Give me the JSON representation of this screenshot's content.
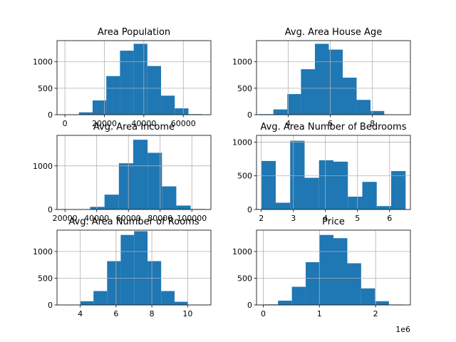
{
  "chart_data": [
    {
      "type": "bar",
      "title": "Area Population",
      "xlim": [
        -4000,
        74000
      ],
      "ylim": [
        0,
        1400
      ],
      "xticks": [
        0,
        20000,
        40000,
        60000
      ],
      "xtick_labels": [
        "0",
        "20000",
        "40000",
        "60000"
      ],
      "yticks": [
        0,
        500,
        1000
      ],
      "ytick_labels": [
        "0",
        "500",
        "1000"
      ],
      "bin_edges": [
        172.6,
        7111,
        14050,
        20988,
        27927,
        34866,
        41804,
        48743,
        55681,
        62620,
        69559
      ],
      "counts": [
        4,
        45,
        270,
        730,
        1210,
        1340,
        920,
        360,
        120,
        10
      ],
      "color": "#1f77b4",
      "grid": true
    },
    {
      "type": "bar",
      "title": "Avg. Area House Age",
      "xlim": [
        2.5,
        9.8
      ],
      "ylim": [
        0,
        1400
      ],
      "xticks": [
        4,
        6,
        8
      ],
      "xtick_labels": [
        "4",
        "6",
        "8"
      ],
      "yticks": [
        0,
        500,
        1000
      ],
      "ytick_labels": [
        "0",
        "500",
        "1000"
      ],
      "bin_edges": [
        2.64,
        3.3,
        3.96,
        4.61,
        5.27,
        5.93,
        6.59,
        7.25,
        7.91,
        8.56,
        9.22
      ],
      "counts": [
        10,
        100,
        390,
        860,
        1340,
        1230,
        700,
        280,
        70,
        5
      ],
      "color": "#1f77b4",
      "grid": true
    },
    {
      "type": "bar",
      "title": "Avg. Area Income",
      "xlim": [
        15000,
        112000
      ],
      "ylim": [
        0,
        1700
      ],
      "xticks": [
        20000,
        40000,
        60000,
        80000,
        100000
      ],
      "xtick_labels": [
        "20000",
        "40000",
        "60000",
        "80000",
        "100000"
      ],
      "yticks": [
        0,
        1000
      ],
      "ytick_labels": [
        "0",
        "1000"
      ],
      "bin_edges": [
        17797,
        26846,
        35896,
        44945,
        53994,
        63044,
        72093,
        81142,
        90192,
        99241,
        108290
      ],
      "counts": [
        2,
        5,
        60,
        340,
        1060,
        1600,
        1300,
        530,
        90,
        10
      ],
      "color": "#1f77b4",
      "grid": true
    },
    {
      "type": "bar",
      "title": "Avg. Area Number of Bedrooms",
      "xlim": [
        1.85,
        6.65
      ],
      "ylim": [
        0,
        1100
      ],
      "xticks": [
        2,
        3,
        4,
        5,
        6
      ],
      "xtick_labels": [
        "2",
        "3",
        "4",
        "5",
        "6"
      ],
      "yticks": [
        0,
        500,
        1000
      ],
      "ytick_labels": [
        "0",
        "500",
        "1000"
      ],
      "bin_edges": [
        2.0,
        2.45,
        2.9,
        3.35,
        3.8,
        4.25,
        4.7,
        5.15,
        5.6,
        6.05,
        6.5
      ],
      "counts": [
        720,
        100,
        1020,
        470,
        730,
        710,
        190,
        410,
        50,
        570
      ],
      "color": "#1f77b4",
      "grid": true
    },
    {
      "type": "bar",
      "title": "Avg. Area Number of Rooms",
      "xlim": [
        2.7,
        11.3
      ],
      "ylim": [
        0,
        1400
      ],
      "xticks": [
        4,
        6,
        8,
        10
      ],
      "xtick_labels": [
        "4",
        "6",
        "8",
        "10"
      ],
      "yticks": [
        0,
        500,
        1000
      ],
      "ytick_labels": [
        "0",
        "500",
        "1000"
      ],
      "bin_edges": [
        3.24,
        3.99,
        4.74,
        5.5,
        6.26,
        7.01,
        7.76,
        8.52,
        9.27,
        10.03,
        10.78
      ],
      "counts": [
        2,
        70,
        260,
        820,
        1310,
        1380,
        820,
        260,
        60,
        5
      ],
      "color": "#1f77b4",
      "grid": true
    },
    {
      "type": "bar",
      "title": "Price",
      "xlim": [
        -0.12,
        2.62
      ],
      "ylim": [
        0,
        1400
      ],
      "xticks": [
        0,
        1,
        2
      ],
      "xtick_labels": [
        "0",
        "1",
        "2"
      ],
      "yticks": [
        0,
        500,
        1000
      ],
      "ytick_labels": [
        "0",
        "500",
        "1000"
      ],
      "offset_label": "1e6",
      "bin_edges": [
        0.016,
        0.263,
        0.51,
        0.756,
        1.003,
        1.25,
        1.497,
        1.743,
        1.99,
        2.237,
        2.484
      ],
      "counts": [
        10,
        80,
        340,
        800,
        1310,
        1250,
        780,
        310,
        70,
        8
      ],
      "color": "#1f77b4",
      "grid": true
    }
  ]
}
